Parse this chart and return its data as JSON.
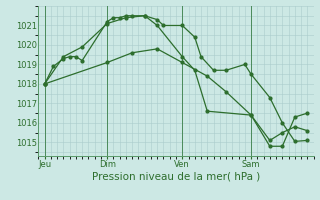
{
  "background_color": "#cce8e4",
  "grid_color": "#aacccc",
  "line_color": "#2d6e2d",
  "title": "Pression niveau de la mer( hPa )",
  "ylim": [
    1014.3,
    1022.0
  ],
  "yticks": [
    1015,
    1016,
    1017,
    1018,
    1019,
    1020,
    1021
  ],
  "xlim": [
    0,
    22
  ],
  "day_labels": [
    "Jeu",
    "Dim",
    "Ven",
    "Sam"
  ],
  "day_positions": [
    0.5,
    5.5,
    11.5,
    17.0
  ],
  "vline_positions": [
    0.5,
    5.5,
    11.5,
    17.0
  ],
  "series1_x": [
    0.5,
    1.2,
    2.0,
    2.5,
    3.0,
    3.5,
    5.5,
    6.0,
    6.5,
    7.0,
    7.5,
    8.5,
    9.5,
    10.0,
    11.5,
    12.5,
    13.0,
    14.0,
    15.0,
    16.5,
    17.0,
    18.5,
    19.5,
    20.5,
    21.5
  ],
  "series1_y": [
    1018.0,
    1018.9,
    1019.3,
    1019.4,
    1019.4,
    1019.2,
    1021.2,
    1021.4,
    1021.4,
    1021.5,
    1021.5,
    1021.5,
    1021.3,
    1021.0,
    1021.0,
    1020.4,
    1019.4,
    1018.7,
    1018.7,
    1019.0,
    1018.5,
    1017.3,
    1016.0,
    1015.05,
    1015.1
  ],
  "series2_x": [
    0.5,
    2.0,
    3.5,
    5.5,
    7.0,
    8.5,
    9.5,
    11.5,
    12.5,
    13.5,
    17.0,
    18.5,
    19.5,
    20.5,
    21.5
  ],
  "series2_y": [
    1018.0,
    1019.4,
    1019.9,
    1021.1,
    1021.4,
    1021.5,
    1021.0,
    1019.4,
    1018.7,
    1016.6,
    1016.4,
    1015.1,
    1015.5,
    1015.8,
    1015.6
  ],
  "series3_x": [
    0.5,
    5.5,
    7.5,
    9.5,
    11.5,
    13.5,
    15.0,
    17.0,
    18.5,
    19.5,
    20.5,
    21.5
  ],
  "series3_y": [
    1018.0,
    1019.1,
    1019.6,
    1019.8,
    1019.1,
    1018.4,
    1017.6,
    1016.4,
    1014.8,
    1014.8,
    1016.3,
    1016.5
  ],
  "marker_size": 2.0,
  "linewidth": 0.9,
  "title_fontsize": 7.5,
  "tick_fontsize": 6.0
}
